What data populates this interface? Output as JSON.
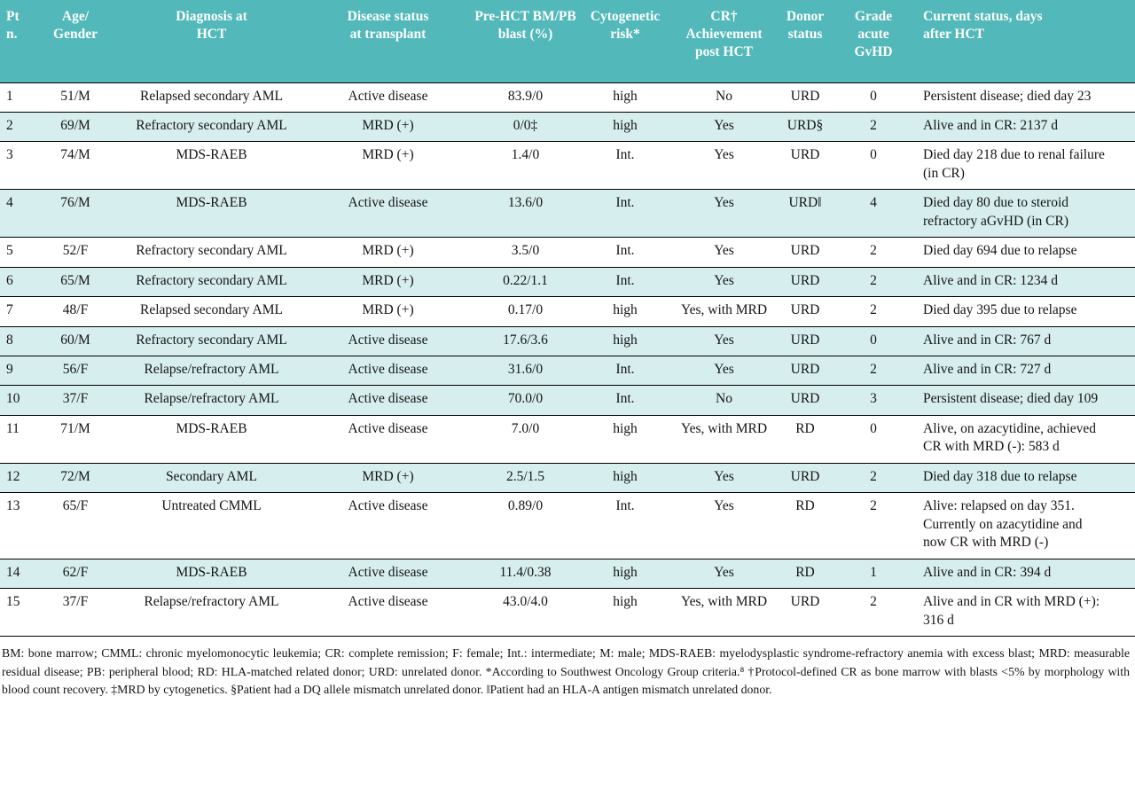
{
  "colors": {
    "header_bg": "#52b8b9",
    "header_text": "#ffffff",
    "row_shaded_bg": "#d7eeee",
    "row_plain_bg": "#ffffff",
    "border": "#000000",
    "body_text": "#141414"
  },
  "table": {
    "columns": [
      {
        "key": "pt",
        "label": "Pt\nn."
      },
      {
        "key": "age-gender",
        "label": "Age/\nGender"
      },
      {
        "key": "diagnosis",
        "label": "Diagnosis at\nHCT"
      },
      {
        "key": "disease-status",
        "label": "Disease status\nat transplant"
      },
      {
        "key": "pre-hct-blast",
        "label": "Pre-HCT BM/PB\nblast (%)"
      },
      {
        "key": "cytogenetic-risk",
        "label": "Cytogenetic\nrisk*"
      },
      {
        "key": "cr-achievement",
        "label": "CR†\nAchievement\npost HCT"
      },
      {
        "key": "donor-status",
        "label": "Donor\nstatus"
      },
      {
        "key": "acute-gvhd",
        "label": "Grade\nacute\nGvHD"
      },
      {
        "key": "current-status",
        "label": "Current status, days\nafter HCT"
      }
    ],
    "rows": [
      {
        "shaded": false,
        "cells": [
          "1",
          "51/M",
          "Relapsed secondary AML",
          "Active disease",
          "83.9/0",
          "high",
          "No",
          "URD",
          "0",
          "Persistent disease; died day 23"
        ]
      },
      {
        "shaded": true,
        "cells": [
          "2",
          "69/M",
          "Refractory secondary AML",
          "MRD (+)",
          "0/0‡",
          "high",
          "Yes",
          "URD§",
          "2",
          "Alive and in CR: 2137 d"
        ]
      },
      {
        "shaded": false,
        "cells": [
          "3",
          "74/M",
          "MDS-RAEB",
          "MRD (+)",
          "1.4/0",
          "Int.",
          "Yes",
          "URD",
          "0",
          "Died day 218 due to renal failure (in CR)"
        ]
      },
      {
        "shaded": true,
        "cells": [
          "4",
          "76/M",
          "MDS-RAEB",
          "Active disease",
          "13.6/0",
          "Int.",
          "Yes",
          "URD‖",
          "4",
          "Died day 80 due to steroid refractory aGvHD (in CR)"
        ]
      },
      {
        "shaded": false,
        "cells": [
          "5",
          "52/F",
          "Refractory secondary AML",
          "MRD (+)",
          "3.5/0",
          "Int.",
          "Yes",
          "URD",
          "2",
          "Died day 694 due to relapse"
        ]
      },
      {
        "shaded": true,
        "cells": [
          "6",
          "65/M",
          "Refractory secondary AML",
          "MRD (+)",
          "0.22/1.1",
          "Int.",
          "Yes",
          "URD",
          "2",
          "Alive and in CR: 1234 d"
        ]
      },
      {
        "shaded": false,
        "cells": [
          "7",
          "48/F",
          "Relapsed secondary AML",
          "MRD (+)",
          "0.17/0",
          "high",
          "Yes, with MRD",
          "URD",
          "2",
          "Died day 395 due to relapse"
        ]
      },
      {
        "shaded": true,
        "cells": [
          "8",
          "60/M",
          "Refractory secondary AML",
          "Active disease",
          "17.6/3.6",
          "high",
          "Yes",
          "URD",
          "0",
          "Alive and in CR: 767 d"
        ]
      },
      {
        "shaded": true,
        "cells": [
          "9",
          "56/F",
          "Relapse/refractory AML",
          "Active disease",
          "31.6/0",
          "Int.",
          "Yes",
          "URD",
          "2",
          "Alive and in CR: 727 d"
        ]
      },
      {
        "shaded": true,
        "cells": [
          "10",
          "37/F",
          "Relapse/refractory AML",
          "Active disease",
          "70.0/0",
          "Int.",
          "No",
          "URD",
          "3",
          "Persistent disease; died day 109"
        ]
      },
      {
        "shaded": false,
        "cells": [
          "11",
          "71/M",
          "MDS-RAEB",
          "Active disease",
          "7.0/0",
          "high",
          "Yes, with MRD",
          "RD",
          "0",
          "Alive, on azacytidine, achieved CR with MRD (-): 583 d"
        ]
      },
      {
        "shaded": true,
        "cells": [
          "12",
          "72/M",
          "Secondary AML",
          "MRD (+)",
          "2.5/1.5",
          "high",
          "Yes",
          "URD",
          "2",
          "Died day 318 due to relapse"
        ]
      },
      {
        "shaded": false,
        "cells": [
          "13",
          "65/F",
          "Untreated CMML",
          "Active disease",
          "0.89/0",
          "Int.",
          "Yes",
          "RD",
          "2",
          "Alive: relapsed on day 351. Currently on azacytidine and now CR with MRD (-)"
        ]
      },
      {
        "shaded": true,
        "cells": [
          "14",
          "62/F",
          "MDS-RAEB",
          "Active disease",
          "11.4/0.38",
          "high",
          "Yes",
          "RD",
          "1",
          "Alive and in CR: 394 d"
        ]
      },
      {
        "shaded": false,
        "cells": [
          "15",
          "37/F",
          "Relapse/refractory AML",
          "Active disease",
          "43.0/4.0",
          "high",
          "Yes, with MRD",
          "URD",
          "2",
          "Alive and in CR with MRD (+): 316 d"
        ]
      }
    ],
    "footnote": "BM: bone marrow; CMML: chronic myelomonocytic leukemia; CR: complete remission; F: female; Int.: intermediate; M: male; MDS-RAEB: myelodysplastic syndrome-refractory anemia with excess blast; MRD: measurable residual disease; PB: peripheral blood; RD: HLA-matched related donor; URD: unrelated donor. *According to Southwest Oncology Group criteria.⁸ †Protocol-defined CR as bone marrow with blasts <5% by morphology with blood count recovery. ‡MRD by cytogenetics. §Patient had a DQ allele mismatch unrelated donor. ‖Patient had an HLA-A antigen mismatch unrelated donor."
  }
}
